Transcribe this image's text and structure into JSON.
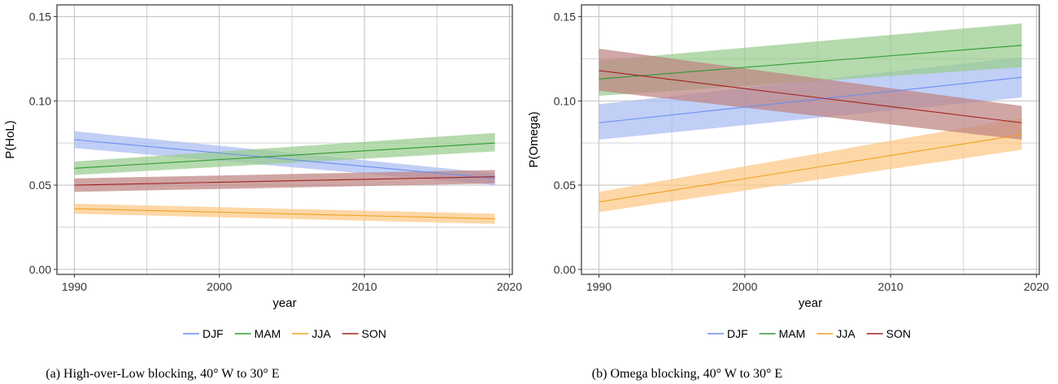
{
  "chart_data": [
    {
      "type": "line",
      "caption": "(a) High-over-Low blocking, 40° W to 30° E",
      "xlabel": "year",
      "ylabel": "P(HoL)",
      "xlim": [
        1988.8,
        2020.2
      ],
      "ylim": [
        -0.003,
        0.157
      ],
      "xticks": [
        1990,
        2000,
        2010,
        2020
      ],
      "yticks": [
        0.0,
        0.05,
        0.1,
        0.15
      ],
      "ytick_labels": [
        "0.00",
        "0.05",
        "0.10",
        "0.15"
      ],
      "grid": true,
      "legend_position": "bottom",
      "x": [
        1990,
        2019
      ],
      "series": [
        {
          "name": "DJF",
          "color": "#6b8ef0",
          "fill": "#a9bdf2",
          "values": [
            0.077,
            0.054
          ],
          "lower": [
            0.072,
            0.05
          ],
          "upper": [
            0.082,
            0.057
          ]
        },
        {
          "name": "MAM",
          "color": "#2f9a33",
          "fill": "#98cc8e",
          "values": [
            0.06,
            0.075
          ],
          "lower": [
            0.056,
            0.07
          ],
          "upper": [
            0.064,
            0.081
          ]
        },
        {
          "name": "JJA",
          "color": "#f0a020",
          "fill": "#fcc885",
          "values": [
            0.036,
            0.03
          ],
          "lower": [
            0.033,
            0.027
          ],
          "upper": [
            0.039,
            0.033
          ]
        },
        {
          "name": "SON",
          "color": "#a0241e",
          "fill": "#be8482",
          "values": [
            0.05,
            0.055
          ],
          "lower": [
            0.046,
            0.051
          ],
          "upper": [
            0.054,
            0.059
          ]
        }
      ]
    },
    {
      "type": "line",
      "caption": "(b) Omega blocking, 40° W to 30° E",
      "xlabel": "year",
      "ylabel": "P(Omega)",
      "xlim": [
        1988.8,
        2020.2
      ],
      "ylim": [
        -0.003,
        0.157
      ],
      "xticks": [
        1990,
        2000,
        2010,
        2020
      ],
      "yticks": [
        0.0,
        0.05,
        0.1,
        0.15
      ],
      "ytick_labels": [
        "0.00",
        "0.05",
        "0.10",
        "0.15"
      ],
      "grid": true,
      "legend_position": "bottom",
      "x": [
        1990,
        2019
      ],
      "series": [
        {
          "name": "DJF",
          "color": "#6b8ef0",
          "fill": "#a9bdf2",
          "values": [
            0.087,
            0.114
          ],
          "lower": [
            0.077,
            0.102
          ],
          "upper": [
            0.098,
            0.126
          ]
        },
        {
          "name": "MAM",
          "color": "#2f9a33",
          "fill": "#98cc8e",
          "values": [
            0.113,
            0.133
          ],
          "lower": [
            0.103,
            0.12
          ],
          "upper": [
            0.124,
            0.146
          ]
        },
        {
          "name": "JJA",
          "color": "#f0a020",
          "fill": "#fcc885",
          "values": [
            0.04,
            0.08
          ],
          "lower": [
            0.034,
            0.071
          ],
          "upper": [
            0.046,
            0.09
          ]
        },
        {
          "name": "SON",
          "color": "#a0241e",
          "fill": "#be8482",
          "values": [
            0.118,
            0.087
          ],
          "lower": [
            0.106,
            0.077
          ],
          "upper": [
            0.131,
            0.097
          ]
        }
      ]
    }
  ]
}
